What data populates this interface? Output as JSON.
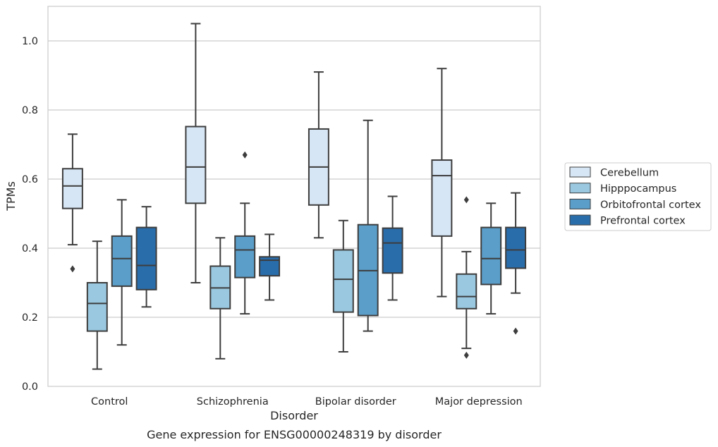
{
  "chart_data": {
    "type": "box",
    "title": "",
    "caption": "Gene expression for ENSG00000248319 by disorder",
    "xlabel": "Disorder",
    "ylabel": "TPMs",
    "ylim": [
      0.0,
      1.1
    ],
    "yticks": [
      0.0,
      0.2,
      0.4,
      0.6,
      0.8,
      1.0
    ],
    "ytick_labels": [
      "0.0",
      "0.2",
      "0.4",
      "0.6",
      "0.8",
      "1.0"
    ],
    "grid": "horizontal",
    "legend_position": "right",
    "categories": [
      "Control",
      "Schizophrenia",
      "Bipolar disorder",
      "Major depression"
    ],
    "series": [
      {
        "name": "Cerebellum",
        "color": "#d7e6f5",
        "boxes": [
          {
            "whislo": 0.41,
            "q1": 0.515,
            "med": 0.58,
            "q3": 0.63,
            "whishi": 0.73,
            "fliers": [
              0.34
            ]
          },
          {
            "whislo": 0.3,
            "q1": 0.53,
            "med": 0.635,
            "q3": 0.752,
            "whishi": 1.05,
            "fliers": []
          },
          {
            "whislo": 0.43,
            "q1": 0.525,
            "med": 0.635,
            "q3": 0.745,
            "whishi": 0.91,
            "fliers": []
          },
          {
            "whislo": 0.26,
            "q1": 0.435,
            "med": 0.61,
            "q3": 0.655,
            "whishi": 0.92,
            "fliers": []
          }
        ]
      },
      {
        "name": "Hipppocampus",
        "color": "#9ac8e0",
        "boxes": [
          {
            "whislo": 0.05,
            "q1": 0.16,
            "med": 0.24,
            "q3": 0.3,
            "whishi": 0.42,
            "fliers": []
          },
          {
            "whislo": 0.08,
            "q1": 0.225,
            "med": 0.285,
            "q3": 0.348,
            "whishi": 0.43,
            "fliers": []
          },
          {
            "whislo": 0.1,
            "q1": 0.215,
            "med": 0.31,
            "q3": 0.395,
            "whishi": 0.48,
            "fliers": []
          },
          {
            "whislo": 0.11,
            "q1": 0.225,
            "med": 0.26,
            "q3": 0.325,
            "whishi": 0.39,
            "fliers": [
              0.54,
              0.09
            ]
          }
        ]
      },
      {
        "name": "Orbitofrontal cortex",
        "color": "#5a9ec9",
        "boxes": [
          {
            "whislo": 0.12,
            "q1": 0.29,
            "med": 0.37,
            "q3": 0.435,
            "whishi": 0.54,
            "fliers": []
          },
          {
            "whislo": 0.21,
            "q1": 0.315,
            "med": 0.395,
            "q3": 0.435,
            "whishi": 0.53,
            "fliers": [
              0.67
            ]
          },
          {
            "whislo": 0.16,
            "q1": 0.205,
            "med": 0.335,
            "q3": 0.468,
            "whishi": 0.77,
            "fliers": []
          },
          {
            "whislo": 0.21,
            "q1": 0.295,
            "med": 0.37,
            "q3": 0.46,
            "whishi": 0.53,
            "fliers": []
          }
        ]
      },
      {
        "name": "Prefrontal cortex",
        "color": "#2a6dab",
        "boxes": [
          {
            "whislo": 0.23,
            "q1": 0.28,
            "med": 0.35,
            "q3": 0.46,
            "whishi": 0.52,
            "fliers": []
          },
          {
            "whislo": 0.25,
            "q1": 0.32,
            "med": 0.365,
            "q3": 0.375,
            "whishi": 0.44,
            "fliers": []
          },
          {
            "whislo": 0.25,
            "q1": 0.328,
            "med": 0.415,
            "q3": 0.458,
            "whishi": 0.55,
            "fliers": []
          },
          {
            "whislo": 0.27,
            "q1": 0.342,
            "med": 0.395,
            "q3": 0.46,
            "whishi": 0.56,
            "fliers": [
              0.16
            ]
          }
        ]
      }
    ]
  }
}
